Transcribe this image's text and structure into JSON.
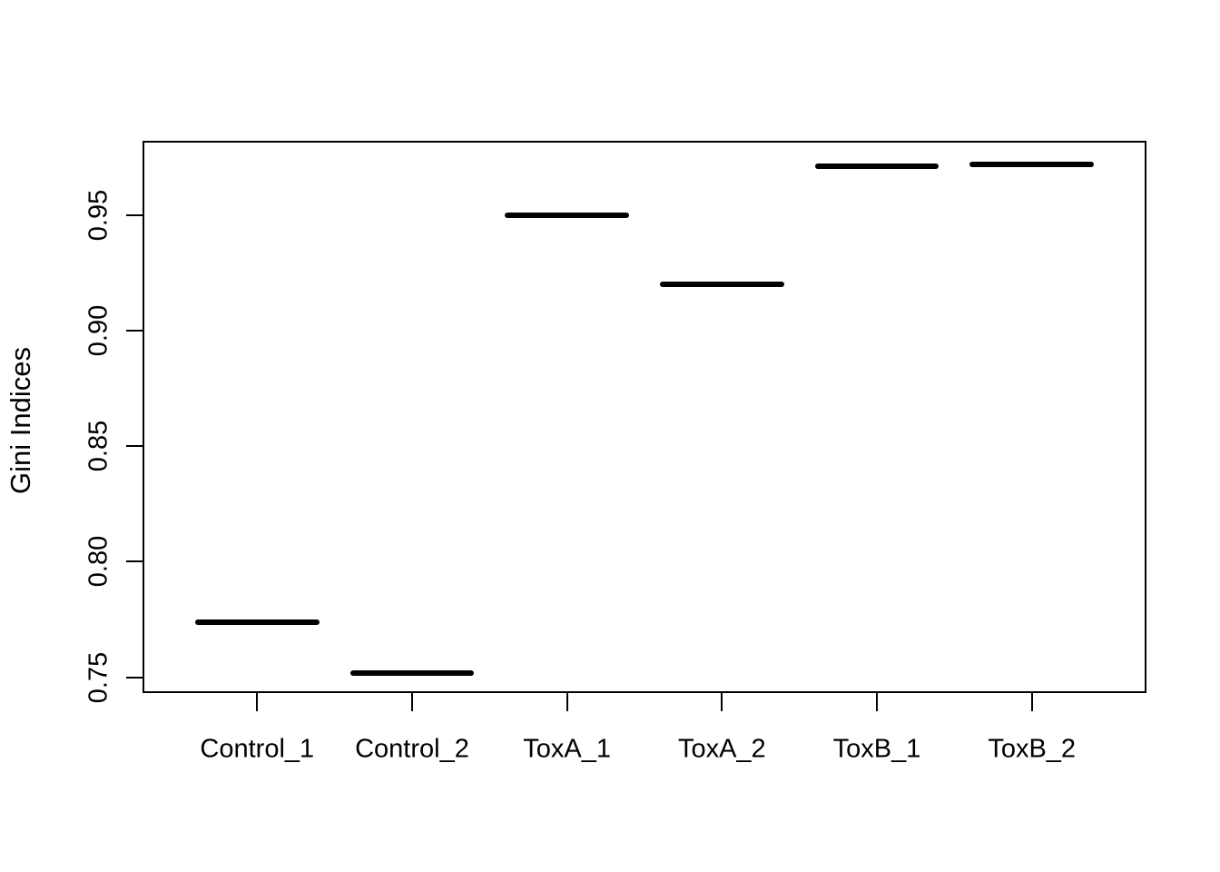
{
  "chart_data": {
    "type": "boxplot",
    "mark_style": "single thick horizontal median line per group (degenerate boxplot: no visible box or whiskers)",
    "title": "",
    "xlabel": "",
    "ylabel": "Gini Indices",
    "categories": [
      "Control_1",
      "Control_2",
      "ToxA_1",
      "ToxA_2",
      "ToxB_1",
      "ToxB_2"
    ],
    "values": [
      0.774,
      0.752,
      0.95,
      0.92,
      0.971,
      0.972
    ],
    "yticks": [
      0.75,
      0.8,
      0.85,
      0.9,
      0.95
    ],
    "ytick_labels": [
      "0.75",
      "0.80",
      "0.85",
      "0.90",
      "0.95"
    ],
    "ylim": [
      0.7432,
      0.9821
    ],
    "grid": false,
    "legend": false,
    "frame": true,
    "tick_label_orientation": "rotated-90-parallel-to-y-axis",
    "colors": {
      "foreground": "#000000",
      "background": "#ffffff"
    }
  }
}
